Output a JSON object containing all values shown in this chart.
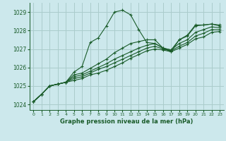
{
  "background_color": "#cce8ec",
  "grid_color": "#aacccc",
  "line_color": "#1a5c2a",
  "xlabel": "Graphe pression niveau de la mer (hPa)",
  "xlim": [
    -0.5,
    23.5
  ],
  "ylim": [
    1023.7,
    1029.5
  ],
  "yticks": [
    1024,
    1025,
    1026,
    1027,
    1028,
    1029
  ],
  "xticks": [
    0,
    1,
    2,
    3,
    4,
    5,
    6,
    7,
    8,
    9,
    10,
    11,
    12,
    13,
    14,
    15,
    16,
    17,
    18,
    19,
    20,
    21,
    22,
    23
  ],
  "series": [
    [
      1024.15,
      1024.55,
      1025.0,
      1025.1,
      1025.2,
      1025.75,
      1026.05,
      1027.35,
      1027.6,
      1028.25,
      1029.0,
      1029.1,
      1028.85,
      1028.05,
      1027.35,
      1027.3,
      1027.05,
      1026.85,
      1027.5,
      1027.75,
      1028.3,
      1028.3,
      1028.35,
      1028.3
    ],
    [
      1024.15,
      1024.55,
      1025.0,
      1025.1,
      1025.2,
      1025.6,
      1025.7,
      1025.95,
      1026.2,
      1026.45,
      1026.8,
      1027.05,
      1027.3,
      1027.4,
      1027.5,
      1027.5,
      1027.05,
      1026.95,
      1027.5,
      1027.7,
      1028.25,
      1028.3,
      1028.35,
      1028.25
    ],
    [
      1024.15,
      1024.55,
      1025.0,
      1025.1,
      1025.2,
      1025.5,
      1025.6,
      1025.8,
      1026.0,
      1026.2,
      1026.45,
      1026.65,
      1026.85,
      1027.05,
      1027.2,
      1027.3,
      1027.05,
      1026.95,
      1027.3,
      1027.5,
      1027.9,
      1028.05,
      1028.2,
      1028.15
    ],
    [
      1024.15,
      1024.55,
      1025.0,
      1025.1,
      1025.2,
      1025.4,
      1025.5,
      1025.7,
      1025.9,
      1026.05,
      1026.25,
      1026.45,
      1026.65,
      1026.85,
      1027.05,
      1027.15,
      1027.0,
      1026.9,
      1027.15,
      1027.35,
      1027.7,
      1027.85,
      1028.05,
      1028.05
    ],
    [
      1024.15,
      1024.55,
      1025.0,
      1025.1,
      1025.2,
      1025.3,
      1025.4,
      1025.6,
      1025.7,
      1025.85,
      1026.05,
      1026.25,
      1026.5,
      1026.7,
      1026.9,
      1027.0,
      1026.95,
      1026.85,
      1027.05,
      1027.25,
      1027.55,
      1027.65,
      1027.9,
      1027.95
    ]
  ]
}
